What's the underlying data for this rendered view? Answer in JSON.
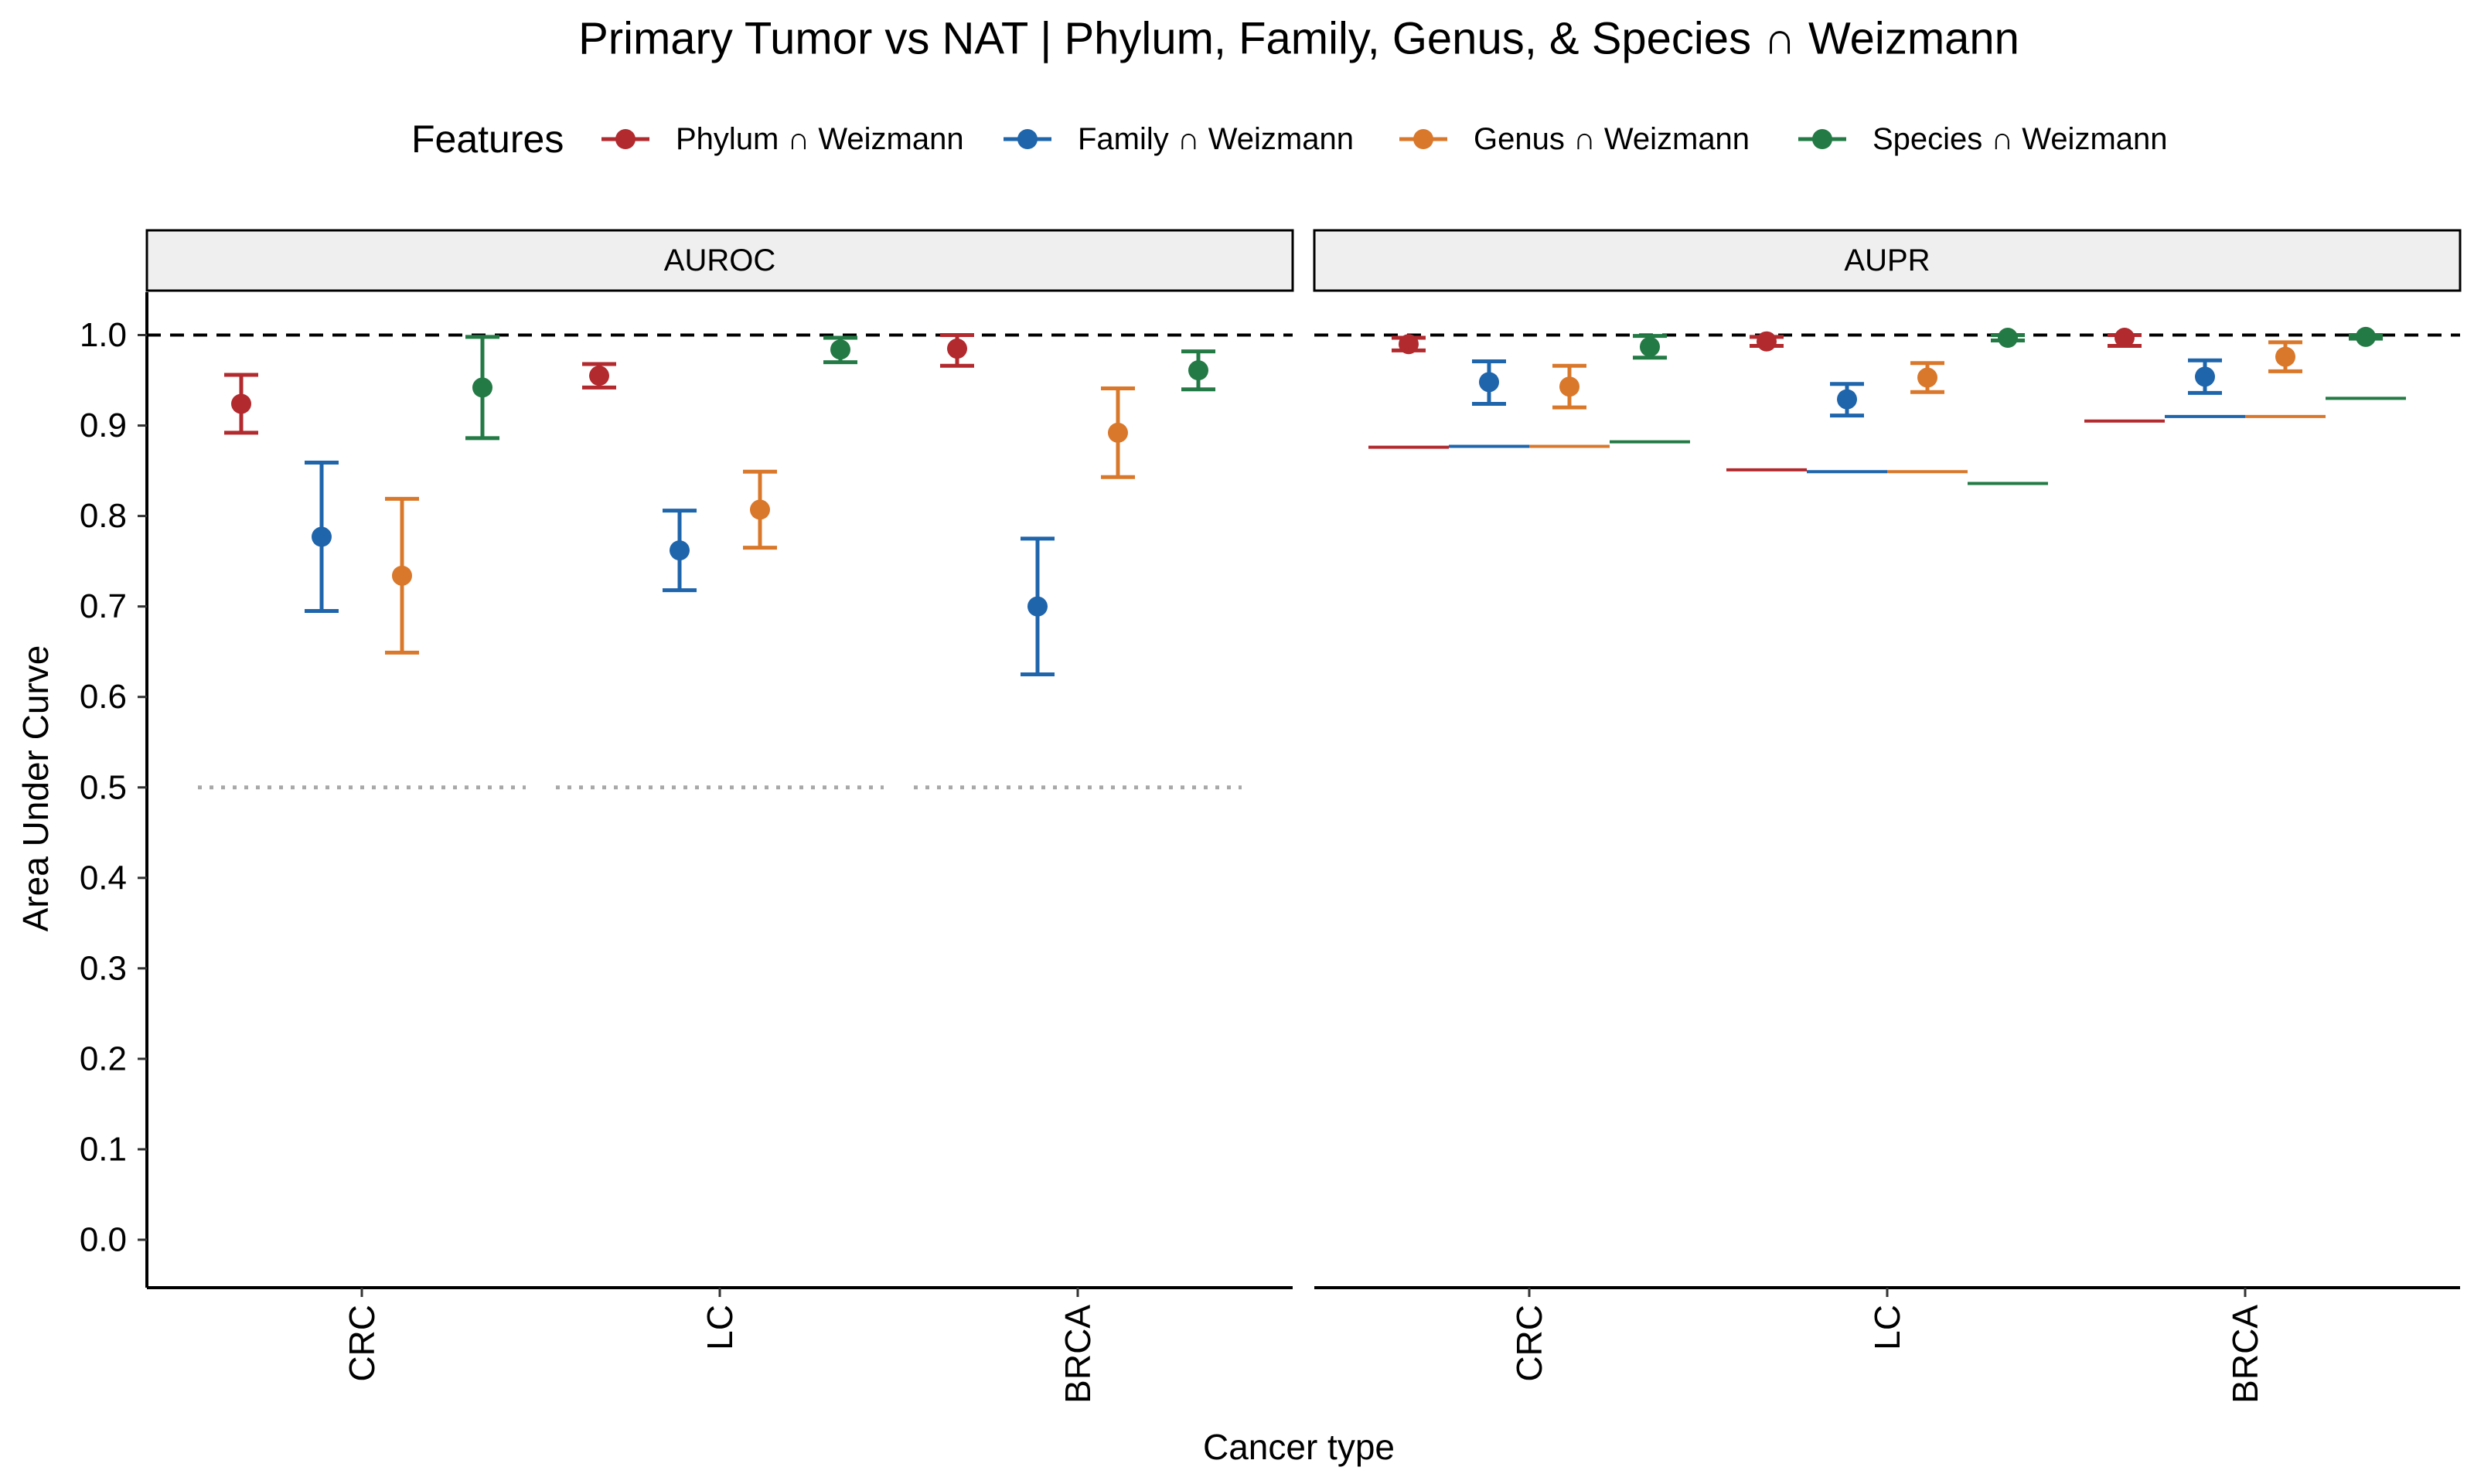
{
  "chart_data": {
    "type": "scatter",
    "title": "Primary Tumor vs NAT | Phylum, Family, Genus, & Species ∩ Weizmann",
    "xlabel": "Cancer type",
    "ylabel": "Area Under Curve",
    "ylim": [
      -0.05,
      1.05
    ],
    "y_ticks": [
      "0.0",
      "0.1",
      "0.2",
      "0.3",
      "0.4",
      "0.5",
      "0.6",
      "0.7",
      "0.8",
      "0.9",
      "1.0"
    ],
    "grid": false,
    "legend_title": "Features",
    "legend_position": "top",
    "categories": [
      "CRC",
      "LC",
      "BRCA"
    ],
    "panels": [
      "AUROC",
      "AUPR"
    ],
    "reference_line": 1.0,
    "series": [
      {
        "name": "Phylum ∩ Weizmann",
        "color": "#B2292E",
        "AUROC": {
          "value": [
            0.924,
            0.955,
            0.985
          ],
          "lower": [
            0.892,
            0.942,
            0.966
          ],
          "upper": [
            0.956,
            0.968,
            1.0
          ],
          "null": [
            0.5,
            0.5,
            0.5
          ]
        },
        "AUPR": {
          "value": [
            0.99,
            0.993,
            0.997
          ],
          "lower": [
            0.983,
            0.988,
            0.988
          ],
          "upper": [
            0.997,
            0.998,
            1.0
          ],
          "null": [
            0.876,
            0.851,
            0.905
          ]
        }
      },
      {
        "name": "Family ∩ Weizmann",
        "color": "#1F65AB",
        "AUROC": {
          "value": [
            0.777,
            0.762,
            0.7
          ],
          "lower": [
            0.695,
            0.718,
            0.625
          ],
          "upper": [
            0.859,
            0.806,
            0.775
          ],
          "null": [
            0.5,
            0.5,
            0.5
          ]
        },
        "AUPR": {
          "value": [
            0.948,
            0.929,
            0.954
          ],
          "lower": [
            0.924,
            0.911,
            0.936
          ],
          "upper": [
            0.971,
            0.946,
            0.972
          ],
          "null": [
            0.877,
            0.849,
            0.91
          ]
        }
      },
      {
        "name": "Genus ∩ Weizmann",
        "color": "#D9782B",
        "AUROC": {
          "value": [
            0.734,
            0.807,
            0.892
          ],
          "lower": [
            0.649,
            0.765,
            0.843
          ],
          "upper": [
            0.819,
            0.849,
            0.941
          ],
          "null": [
            0.5,
            0.5,
            0.5
          ]
        },
        "AUPR": {
          "value": [
            0.943,
            0.953,
            0.976
          ],
          "lower": [
            0.92,
            0.937,
            0.96
          ],
          "upper": [
            0.966,
            0.969,
            0.992
          ],
          "null": [
            0.877,
            0.849,
            0.91
          ]
        }
      },
      {
        "name": "Species ∩ Weizmann",
        "color": "#237A45",
        "AUROC": {
          "value": [
            0.942,
            0.984,
            0.961
          ],
          "lower": [
            0.886,
            0.97,
            0.94
          ],
          "upper": [
            0.998,
            0.997,
            0.982
          ],
          "null": [
            0.5,
            0.5,
            0.5
          ]
        },
        "AUPR": {
          "value": [
            0.987,
            0.997,
            0.998
          ],
          "lower": [
            0.975,
            0.994,
            0.996
          ],
          "upper": [
            0.999,
            1.0,
            1.0
          ],
          "null": [
            0.882,
            0.836,
            0.93
          ]
        }
      }
    ]
  }
}
